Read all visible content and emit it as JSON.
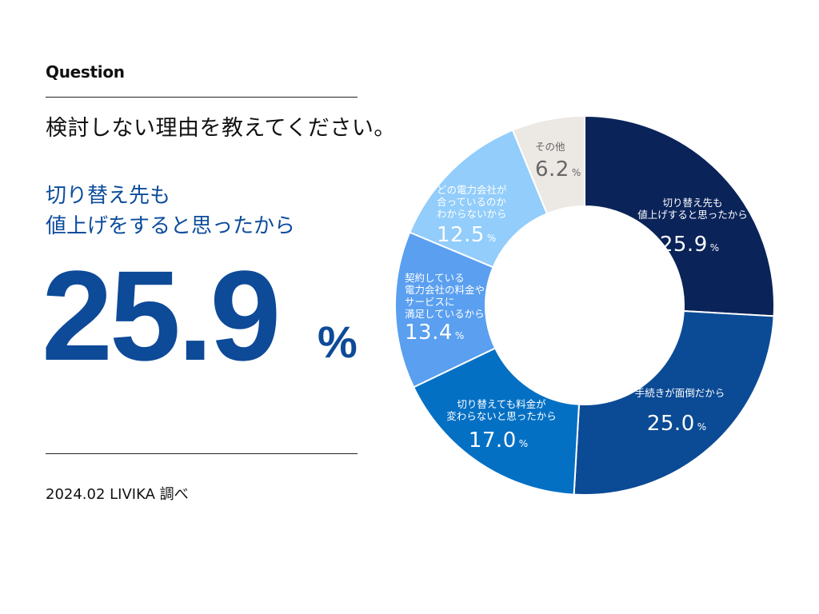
{
  "header": {
    "question_label": "Question",
    "question_text": "検討しない理由を教えてください。"
  },
  "highlight": {
    "label_line1": "切り替え先も",
    "label_line2": "値上げをすると思ったから",
    "value": "25.9",
    "unit": "%"
  },
  "footer": {
    "source": "2024.02 LIVIKA 調べ"
  },
  "chart_data": {
    "type": "pie",
    "donut": true,
    "start": "12 o'clock",
    "direction": "clockwise",
    "unit": "%",
    "slices": [
      {
        "label_lines": [
          "切り替え先も",
          "値上げすると思ったから"
        ],
        "value": 25.9,
        "value_text": "25.9",
        "color": "#0a2359",
        "text_color": "#ffffff"
      },
      {
        "label_lines": [
          "手続きが面倒だから"
        ],
        "value": 25.0,
        "value_text": "25.0",
        "color": "#0b4a95",
        "text_color": "#ffffff"
      },
      {
        "label_lines": [
          "切り替えても料金が",
          "変わらないと思ったから"
        ],
        "value": 17.0,
        "value_text": "17.0",
        "color": "#0470c4",
        "text_color": "#ffffff"
      },
      {
        "label_lines": [
          "契約している",
          "電力会社の料金や",
          "サービスに",
          "満足しているから"
        ],
        "value": 13.4,
        "value_text": "13.4",
        "color": "#5a9ff0",
        "text_color": "#ffffff"
      },
      {
        "label_lines": [
          "どの電力会社が",
          "合っているのか",
          "わからないから"
        ],
        "value": 12.5,
        "value_text": "12.5",
        "color": "#92cdfb",
        "text_color": "#ffffff"
      },
      {
        "label_lines": [
          "その他"
        ],
        "value": 6.2,
        "value_text": "6.2",
        "color": "#ece8e4",
        "text_color": "#666666"
      }
    ]
  }
}
